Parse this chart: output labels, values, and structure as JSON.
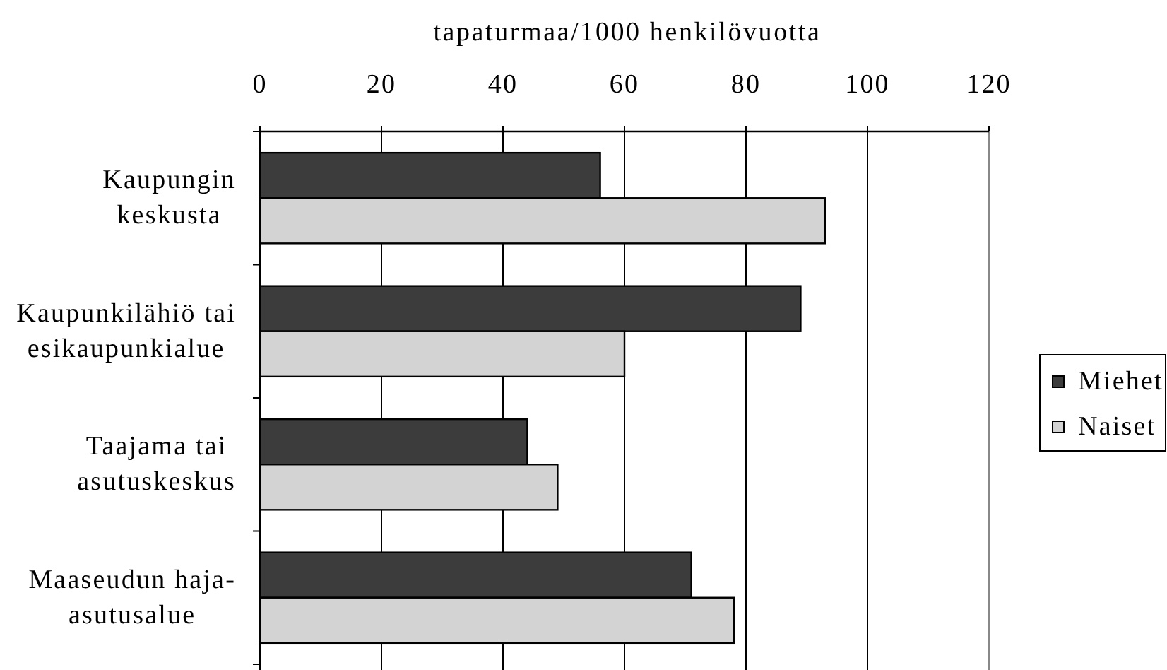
{
  "chart_data": {
    "type": "bar",
    "orientation": "horizontal",
    "xlabel": "tapaturmaa/1000 henkilövuotta",
    "categories": [
      "Kaupungin keskusta",
      "Kaupunkilähiö tai esikaupunkialue",
      "Taajama tai asutuskeskus",
      "Maaseudun haja-asutusalue"
    ],
    "series": [
      {
        "name": "Miehet",
        "color": "#3c3c3c",
        "values": [
          56,
          89,
          44,
          71
        ]
      },
      {
        "name": "Naiset",
        "color": "#d3d3d3",
        "values": [
          93,
          60,
          49,
          78
        ]
      }
    ],
    "xlim": [
      0,
      120
    ],
    "xticks": [
      0,
      20,
      40,
      60,
      80,
      100,
      120
    ],
    "grid": "x",
    "legend": "right"
  }
}
